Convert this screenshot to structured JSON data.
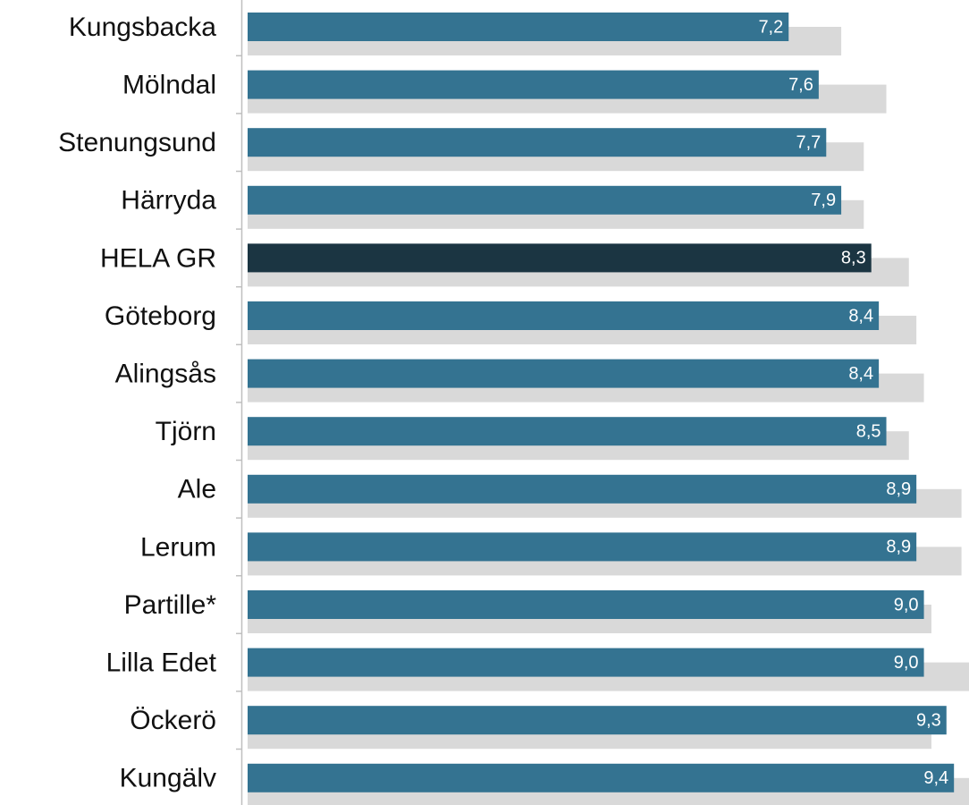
{
  "chart_data": {
    "type": "hbar",
    "categories": [
      "Kungsbacka",
      "Mölndal",
      "Stenungsund",
      "Härryda",
      "HELA GR",
      "Göteborg",
      "Alingsås",
      "Tjörn",
      "Ale",
      "Lerum",
      "Partille*",
      "Lilla Edet",
      "Öckerö",
      "Kungälv"
    ],
    "xlim": [
      0,
      9.6
    ],
    "series": [
      {
        "color": "#d9d9d9",
        "values": [
          7.9,
          8.5,
          8.2,
          8.2,
          8.8,
          8.9,
          9.0,
          8.8,
          9.5,
          9.5,
          9.1,
          9.7,
          9.1,
          9.6
        ]
      },
      {
        "color": "#347391",
        "colors": [
          "#347391",
          "#347391",
          "#347391",
          "#347391",
          "#1b3542",
          "#347391",
          "#347391",
          "#347391",
          "#347391",
          "#347391",
          "#347391",
          "#347391",
          "#347391",
          "#347391"
        ],
        "values": [
          7.2,
          7.6,
          7.7,
          7.9,
          8.3,
          8.4,
          8.4,
          8.5,
          8.9,
          8.9,
          9.0,
          9.0,
          9.3,
          9.4
        ],
        "value_labels": [
          "7,2",
          "7,6",
          "7,7",
          "7,9",
          "8,3",
          "8,4",
          "8,4",
          "8,5",
          "8,9",
          "8,9",
          "9,0",
          "9,0",
          "9,3",
          "9,4"
        ]
      }
    ]
  }
}
